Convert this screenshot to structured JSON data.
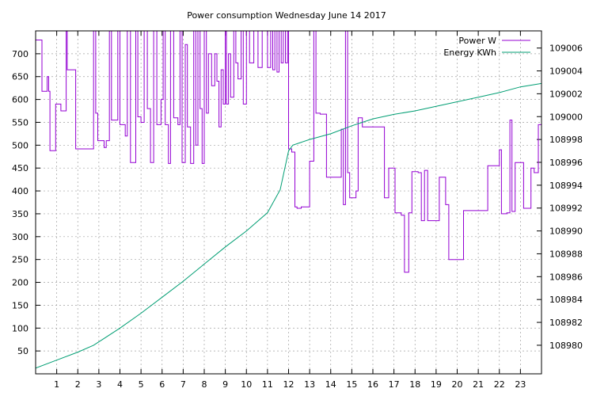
{
  "chart_data": {
    "type": "line",
    "title": "Power consumption Wednesday June 14 2017",
    "xlabel": "",
    "ylabel": "",
    "grid": true,
    "legend_position": "top-right",
    "x_ticks": [
      "1",
      "2",
      "3",
      "4",
      "5",
      "6",
      "7",
      "8",
      "9",
      "10",
      "11",
      "12",
      "13",
      "14",
      "15",
      "16",
      "17",
      "18",
      "19",
      "20",
      "21",
      "22",
      "23"
    ],
    "xlim": [
      0,
      24
    ],
    "y_left": {
      "ticks": [
        "50",
        "100",
        "150",
        "200",
        "250",
        "300",
        "350",
        "400",
        "450",
        "500",
        "550",
        "600",
        "650",
        "700"
      ],
      "lim": [
        0,
        750
      ]
    },
    "y_right": {
      "ticks": [
        "108980",
        "108982",
        "108984",
        "108986",
        "108988",
        "108990",
        "108992",
        "108994",
        "108996",
        "108998",
        "109000",
        "109002",
        "109004",
        "109006"
      ],
      "lim": [
        108977.5,
        109007.5
      ]
    },
    "series": [
      {
        "name": "Power W",
        "axis": "left",
        "color": "#9400d3",
        "style": "steps",
        "points": [
          [
            0.0,
            730
          ],
          [
            0.3,
            618
          ],
          [
            0.55,
            650
          ],
          [
            0.62,
            618
          ],
          [
            0.68,
            488
          ],
          [
            0.95,
            590
          ],
          [
            1.2,
            575
          ],
          [
            1.45,
            750
          ],
          [
            1.5,
            665
          ],
          [
            1.9,
            492
          ],
          [
            2.25,
            492
          ],
          [
            2.6,
            492
          ],
          [
            2.75,
            750
          ],
          [
            2.85,
            570
          ],
          [
            2.95,
            510
          ],
          [
            3.25,
            495
          ],
          [
            3.35,
            510
          ],
          [
            3.5,
            750
          ],
          [
            3.6,
            555
          ],
          [
            3.9,
            750
          ],
          [
            4.0,
            545
          ],
          [
            4.25,
            520
          ],
          [
            4.35,
            750
          ],
          [
            4.5,
            462
          ],
          [
            4.75,
            750
          ],
          [
            4.85,
            562
          ],
          [
            5.0,
            550
          ],
          [
            5.15,
            750
          ],
          [
            5.3,
            580
          ],
          [
            5.45,
            462
          ],
          [
            5.6,
            750
          ],
          [
            5.75,
            545
          ],
          [
            5.95,
            600
          ],
          [
            6.05,
            750
          ],
          [
            6.15,
            545
          ],
          [
            6.3,
            460
          ],
          [
            6.4,
            750
          ],
          [
            6.55,
            560
          ],
          [
            6.75,
            545
          ],
          [
            6.85,
            750
          ],
          [
            6.95,
            462
          ],
          [
            7.1,
            720
          ],
          [
            7.2,
            540
          ],
          [
            7.35,
            460
          ],
          [
            7.5,
            750
          ],
          [
            7.6,
            500
          ],
          [
            7.7,
            750
          ],
          [
            7.8,
            580
          ],
          [
            7.9,
            460
          ],
          [
            8.0,
            750
          ],
          [
            8.1,
            570
          ],
          [
            8.2,
            700
          ],
          [
            8.35,
            630
          ],
          [
            8.5,
            700
          ],
          [
            8.6,
            640
          ],
          [
            8.7,
            540
          ],
          [
            8.8,
            665
          ],
          [
            8.9,
            590
          ],
          [
            9.0,
            750
          ],
          [
            9.05,
            590
          ],
          [
            9.15,
            700
          ],
          [
            9.25,
            605
          ],
          [
            9.4,
            750
          ],
          [
            9.5,
            680
          ],
          [
            9.6,
            645
          ],
          [
            9.75,
            750
          ],
          [
            9.85,
            590
          ],
          [
            10.0,
            750
          ],
          [
            10.15,
            680
          ],
          [
            10.35,
            750
          ],
          [
            10.45,
            750
          ],
          [
            10.55,
            670
          ],
          [
            10.75,
            750
          ],
          [
            11.0,
            670
          ],
          [
            11.15,
            750
          ],
          [
            11.25,
            665
          ],
          [
            11.35,
            750
          ],
          [
            11.45,
            660
          ],
          [
            11.55,
            750
          ],
          [
            11.65,
            680
          ],
          [
            11.75,
            750
          ],
          [
            11.85,
            680
          ],
          [
            11.95,
            750
          ],
          [
            12.0,
            492
          ],
          [
            12.15,
            485
          ],
          [
            12.3,
            365
          ],
          [
            12.4,
            362
          ],
          [
            12.6,
            365
          ],
          [
            13.0,
            465
          ],
          [
            13.2,
            750
          ],
          [
            13.3,
            570
          ],
          [
            13.5,
            568
          ],
          [
            13.8,
            430
          ],
          [
            14.1,
            430
          ],
          [
            14.3,
            430
          ],
          [
            14.5,
            535
          ],
          [
            14.6,
            370
          ],
          [
            14.7,
            750
          ],
          [
            14.8,
            440
          ],
          [
            14.9,
            385
          ],
          [
            15.2,
            400
          ],
          [
            15.3,
            560
          ],
          [
            15.5,
            540
          ],
          [
            15.85,
            540
          ],
          [
            16.25,
            540
          ],
          [
            16.55,
            385
          ],
          [
            16.75,
            450
          ],
          [
            17.05,
            352
          ],
          [
            17.35,
            347
          ],
          [
            17.5,
            222
          ],
          [
            17.7,
            352
          ],
          [
            17.85,
            442
          ],
          [
            18.15,
            440
          ],
          [
            18.3,
            335
          ],
          [
            18.45,
            445
          ],
          [
            18.6,
            335
          ],
          [
            18.8,
            335
          ],
          [
            19.15,
            430
          ],
          [
            19.45,
            370
          ],
          [
            19.6,
            250
          ],
          [
            19.9,
            250
          ],
          [
            20.3,
            357
          ],
          [
            21.0,
            357
          ],
          [
            21.45,
            455
          ],
          [
            21.85,
            455
          ],
          [
            22.0,
            490
          ],
          [
            22.1,
            350
          ],
          [
            22.35,
            352
          ],
          [
            22.5,
            555
          ],
          [
            22.6,
            355
          ],
          [
            22.75,
            462
          ],
          [
            23.15,
            362
          ],
          [
            23.5,
            450
          ],
          [
            23.65,
            440
          ],
          [
            23.85,
            545
          ],
          [
            24.0,
            545
          ]
        ]
      },
      {
        "name": "Energy KWh",
        "axis": "right",
        "color": "#009e73",
        "style": "line",
        "points": [
          [
            0.0,
            108978.0
          ],
          [
            1.0,
            108978.7
          ],
          [
            2.0,
            108979.4
          ],
          [
            2.75,
            108980.0
          ],
          [
            3.0,
            108980.3
          ],
          [
            4.0,
            108981.5
          ],
          [
            5.0,
            108982.8
          ],
          [
            6.0,
            108984.2
          ],
          [
            7.0,
            108985.6
          ],
          [
            8.0,
            108987.1
          ],
          [
            9.0,
            108988.6
          ],
          [
            10.0,
            108990.0
          ],
          [
            11.0,
            108991.6
          ],
          [
            11.6,
            108993.6
          ],
          [
            12.0,
            108997.0
          ],
          [
            12.2,
            108997.5
          ],
          [
            13.0,
            108998.0
          ],
          [
            14.0,
            108998.5
          ],
          [
            15.0,
            108999.2
          ],
          [
            16.0,
            108999.8
          ],
          [
            17.0,
            109000.2
          ],
          [
            18.0,
            109000.5
          ],
          [
            19.0,
            109000.9
          ],
          [
            20.0,
            109001.3
          ],
          [
            21.0,
            109001.7
          ],
          [
            22.0,
            109002.1
          ],
          [
            23.0,
            109002.6
          ],
          [
            24.0,
            109002.9
          ]
        ]
      }
    ]
  }
}
